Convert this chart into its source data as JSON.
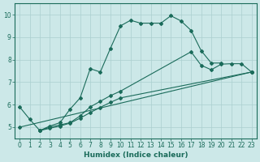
{
  "background_color": "#cce8e8",
  "grid_color": "#aacfcf",
  "line_color": "#1a6b5a",
  "xlabel": "Humidex (Indice chaleur)",
  "xlim": [
    -0.5,
    23.5
  ],
  "ylim": [
    4.5,
    10.5
  ],
  "yticks": [
    5,
    6,
    7,
    8,
    9,
    10
  ],
  "xticks": [
    0,
    1,
    2,
    3,
    4,
    5,
    6,
    7,
    8,
    9,
    10,
    11,
    12,
    13,
    14,
    15,
    16,
    17,
    18,
    19,
    20,
    21,
    22,
    23
  ],
  "series1_x": [
    0,
    1,
    2,
    3,
    4,
    5,
    6,
    7,
    8,
    9,
    10,
    11,
    12,
    13,
    14,
    15,
    16,
    17,
    18,
    19,
    20
  ],
  "series1_y": [
    5.9,
    5.35,
    4.85,
    5.05,
    5.2,
    5.8,
    6.3,
    7.6,
    7.45,
    8.5,
    9.5,
    9.75,
    9.62,
    9.62,
    9.62,
    9.95,
    9.72,
    9.3,
    8.4,
    7.85,
    7.85
  ],
  "series2_x": [
    2,
    3,
    4,
    5,
    6,
    7,
    8,
    9,
    10,
    17,
    18,
    19,
    20,
    21,
    22,
    23
  ],
  "series2_y": [
    4.85,
    5.0,
    5.1,
    5.2,
    5.5,
    5.9,
    6.15,
    6.4,
    6.6,
    8.35,
    7.75,
    7.55,
    7.8,
    7.82,
    7.82,
    7.45
  ],
  "series3_x": [
    2,
    3,
    4,
    5,
    6,
    7,
    8,
    9,
    10,
    23
  ],
  "series3_y": [
    4.85,
    4.95,
    5.05,
    5.18,
    5.4,
    5.65,
    5.88,
    6.1,
    6.3,
    7.45
  ],
  "series4_x": [
    0,
    23
  ],
  "series4_y": [
    5.0,
    7.45
  ]
}
